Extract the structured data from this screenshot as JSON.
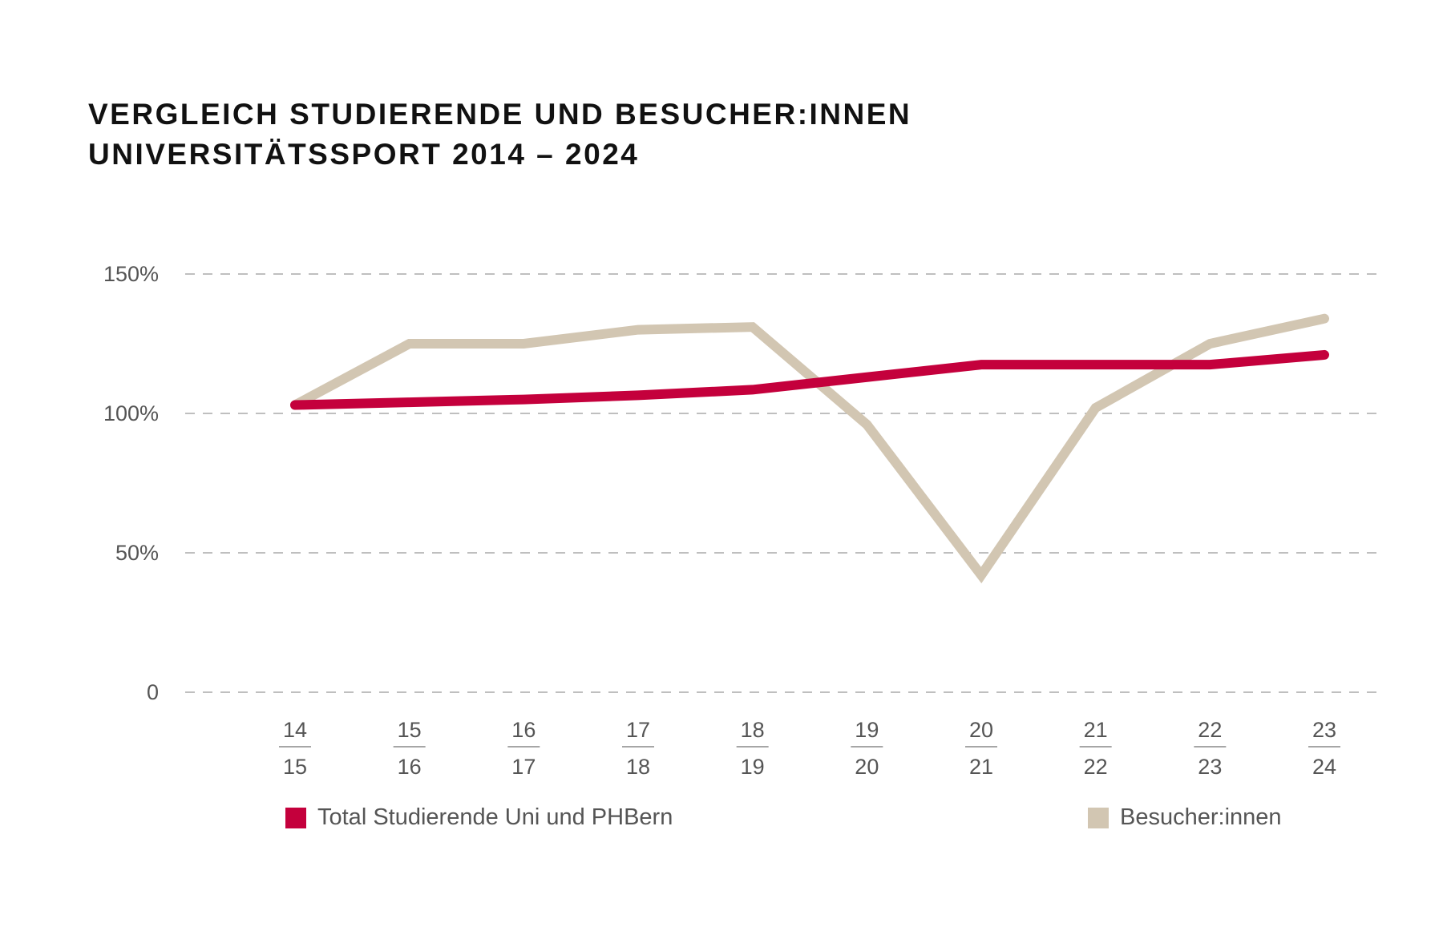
{
  "chart_data": {
    "type": "line",
    "title": [
      "VERGLEICH STUDIERENDE UND BESUCHER:INNEN",
      "UNIVERSITÄTSSPORT 2014 – 2024"
    ],
    "categories": [
      [
        "14",
        "15"
      ],
      [
        "15",
        "16"
      ],
      [
        "16",
        "17"
      ],
      [
        "17",
        "18"
      ],
      [
        "18",
        "19"
      ],
      [
        "19",
        "20"
      ],
      [
        "20",
        "21"
      ],
      [
        "21",
        "22"
      ],
      [
        "22",
        "23"
      ],
      [
        "23",
        "24"
      ]
    ],
    "ylim": [
      0,
      150
    ],
    "yticks": [
      {
        "value": 0,
        "label": "0"
      },
      {
        "value": 50,
        "label": "50%"
      },
      {
        "value": 100,
        "label": "100%"
      },
      {
        "value": 150,
        "label": "150%"
      }
    ],
    "grid": "dashed horizontal",
    "legend_placement": "bottom",
    "series": [
      {
        "name": "Total Studierende Uni und PHBern",
        "color": "#c4003c",
        "values": [
          103,
          104,
          105,
          106.5,
          108.5,
          113,
          117.5,
          117.5,
          117.5,
          121
        ]
      },
      {
        "name": "Besucher:innen",
        "color": "#d2c6b2",
        "values": [
          103,
          125,
          125,
          130,
          131,
          96,
          42,
          102,
          125,
          134
        ]
      }
    ]
  }
}
